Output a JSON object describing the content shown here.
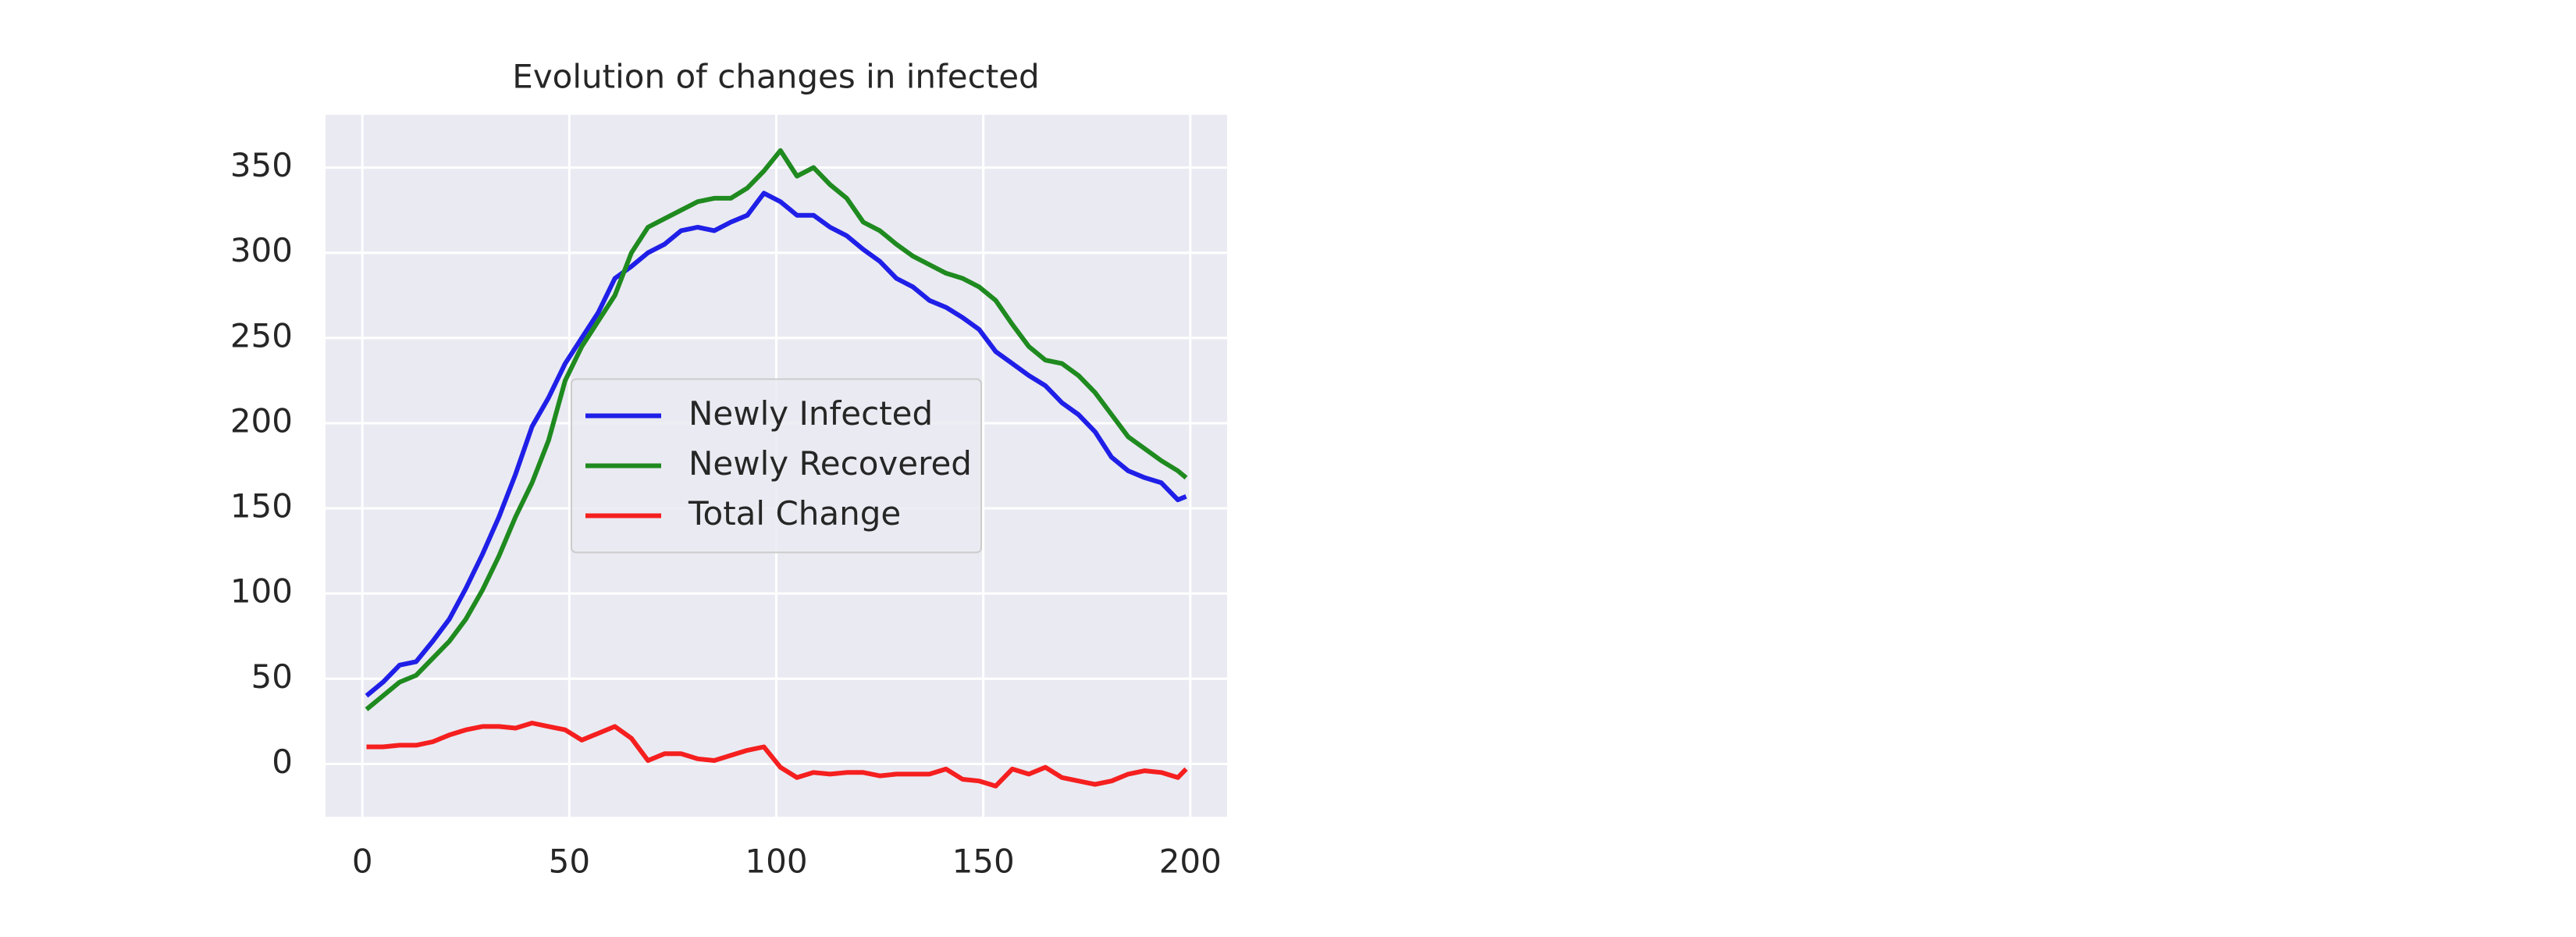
{
  "chart_data": {
    "type": "line",
    "title": "Evolution of changes in infected",
    "x": [
      1,
      5,
      9,
      13,
      17,
      21,
      25,
      29,
      33,
      37,
      41,
      45,
      49,
      53,
      57,
      61,
      65,
      69,
      73,
      77,
      81,
      85,
      89,
      93,
      97,
      101,
      105,
      109,
      113,
      117,
      121,
      125,
      129,
      133,
      137,
      141,
      145,
      149,
      153,
      157,
      161,
      165,
      169,
      173,
      177,
      181,
      185,
      189,
      193,
      197,
      199
    ],
    "series": [
      {
        "name": "Newly Infected",
        "color": "#1f1fe8",
        "values": [
          40,
          48,
          58,
          60,
          72,
          85,
          103,
          123,
          145,
          170,
          198,
          215,
          235,
          250,
          265,
          285,
          292,
          300,
          305,
          313,
          315,
          313,
          318,
          322,
          335,
          330,
          322,
          322,
          315,
          310,
          302,
          295,
          285,
          280,
          272,
          268,
          262,
          255,
          242,
          235,
          228,
          222,
          212,
          205,
          195,
          180,
          172,
          168,
          165,
          155,
          157
        ]
      },
      {
        "name": "Newly Recovered",
        "color": "#1f8a1f",
        "values": [
          32,
          40,
          48,
          52,
          62,
          72,
          85,
          102,
          122,
          145,
          165,
          190,
          225,
          245,
          260,
          275,
          300,
          315,
          320,
          325,
          330,
          332,
          332,
          338,
          348,
          360,
          345,
          350,
          340,
          332,
          318,
          313,
          305,
          298,
          293,
          288,
          285,
          280,
          272,
          258,
          245,
          237,
          235,
          228,
          218,
          205,
          192,
          185,
          178,
          172,
          168
        ]
      },
      {
        "name": "Total Change",
        "color": "#f51f1f",
        "values": [
          10,
          10,
          11,
          11,
          13,
          17,
          20,
          22,
          22,
          21,
          24,
          22,
          20,
          14,
          18,
          22,
          15,
          2,
          6,
          6,
          3,
          2,
          5,
          8,
          10,
          -2,
          -8,
          -5,
          -6,
          -5,
          -5,
          -7,
          -6,
          -6,
          -6,
          -3,
          -9,
          -10,
          -13,
          -3,
          -6,
          -2,
          -8,
          -10,
          -12,
          -10,
          -6,
          -4,
          -5,
          -8,
          -3
        ]
      }
    ],
    "xlim": [
      -8.9,
      208.9
    ],
    "ylim": [
      -31,
      381
    ],
    "xticks": [
      0,
      50,
      100,
      150,
      200
    ],
    "yticks": [
      0,
      50,
      100,
      150,
      200,
      250,
      300,
      350
    ],
    "grid": true,
    "legend": "center"
  }
}
